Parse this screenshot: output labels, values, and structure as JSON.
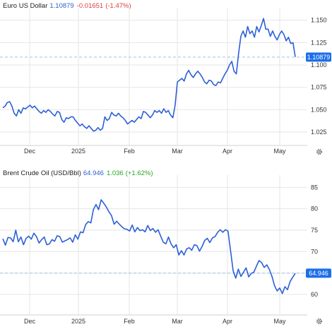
{
  "chart_data": [
    {
      "type": "line",
      "title": "Euro US Dollar",
      "last_value": "1.10879",
      "change": "-0.01651",
      "change_pct": "(-1.47%)",
      "price_tag": "1.10879",
      "x_ticks": [
        "Dec",
        "2025",
        "Feb",
        "Mar",
        "Apr",
        "May"
      ],
      "y_ticks": [
        "1.150",
        "1.125",
        "1.100",
        "1.075",
        "1.050",
        "1.025"
      ],
      "ylim": [
        1.01,
        1.16
      ],
      "series": [
        {
          "values": [
            1.052,
            1.054,
            1.058,
            1.059,
            1.054,
            1.046,
            1.043,
            1.05,
            1.046,
            1.052,
            1.051,
            1.053,
            1.055,
            1.052,
            1.054,
            1.051,
            1.048,
            1.046,
            1.049,
            1.047,
            1.05,
            1.048,
            1.045,
            1.043,
            1.048,
            1.047,
            1.039,
            1.036,
            1.041,
            1.04,
            1.042,
            1.042,
            1.038,
            1.035,
            1.032,
            1.034,
            1.031,
            1.029,
            1.032,
            1.029,
            1.026,
            1.027,
            1.03,
            1.027,
            1.029,
            1.042,
            1.038,
            1.04,
            1.047,
            1.044,
            1.043,
            1.046,
            1.043,
            1.041,
            1.038,
            1.034,
            1.036,
            1.038,
            1.036,
            1.039,
            1.042,
            1.04,
            1.048,
            1.047,
            1.044,
            1.041,
            1.044,
            1.049,
            1.047,
            1.049,
            1.046,
            1.051,
            1.047,
            1.049,
            1.044,
            1.041,
            1.055,
            1.081,
            1.083,
            1.085,
            1.082,
            1.09,
            1.094,
            1.089,
            1.086,
            1.09,
            1.093,
            1.09,
            1.086,
            1.081,
            1.079,
            1.083,
            1.082,
            1.078,
            1.077,
            1.081,
            1.08,
            1.085,
            1.09,
            1.094,
            1.1,
            1.104,
            1.093,
            1.09,
            1.113,
            1.132,
            1.138,
            1.131,
            1.143,
            1.135,
            1.138,
            1.131,
            1.143,
            1.137,
            1.144,
            1.152,
            1.14,
            1.14,
            1.132,
            1.138,
            1.132,
            1.128,
            1.134,
            1.138,
            1.134,
            1.127,
            1.131,
            1.124,
            1.125,
            1.109
          ]
        }
      ]
    },
    {
      "type": "line",
      "title": "Brent Crude Oil (USD/Bbl)",
      "last_value": "64.946",
      "change": "1.036",
      "change_pct": "(+1.62%)",
      "price_tag": "64.946",
      "x_ticks": [
        "Dec",
        "2025",
        "Feb",
        "Mar",
        "Apr",
        "May"
      ],
      "y_ticks": [
        "85",
        "80",
        "75",
        "70",
        "65",
        "60"
      ],
      "ylim": [
        55.2,
        87.2
      ],
      "series": [
        {
          "values": [
            73,
            71.5,
            73.3,
            73.2,
            72.3,
            75,
            72.3,
            73.4,
            71.6,
            73.1,
            73.6,
            72.9,
            74.3,
            73.5,
            72,
            72.8,
            73.4,
            71.6,
            71.8,
            72.8,
            72.4,
            73.7,
            73.5,
            72.2,
            72.5,
            72.8,
            73.2,
            72.2,
            73.9,
            72.9,
            74.6,
            74.4,
            76.3,
            77,
            76.7,
            79.8,
            81,
            79.8,
            82.1,
            81.3,
            80.4,
            79.3,
            78.4,
            76.4,
            77.1,
            76.4,
            75.8,
            75.3,
            75.2,
            74.8,
            76.2,
            74.6,
            75.6,
            74.9,
            75.1,
            74.6,
            76.1,
            74.9,
            75.4,
            74.5,
            75.1,
            73.6,
            72.2,
            71.8,
            73.4,
            71.8,
            70.9,
            71.6,
            69.2,
            70.2,
            69.2,
            70.6,
            70.9,
            70.3,
            71.6,
            71.4,
            70.1,
            71.2,
            72.6,
            73.1,
            72.1,
            73.2,
            73.5,
            74.5,
            75.1,
            74.5,
            75.1,
            74.8,
            70.2,
            65.5,
            63.8,
            65.9,
            64.2,
            65.2,
            66.2,
            64.1,
            64.9,
            65.2,
            66.6,
            67.9,
            67.4,
            66.3,
            66.9,
            65.8,
            64.2,
            62,
            60.8,
            61.5,
            60.2,
            61.8,
            61.1,
            63,
            64,
            64.9
          ]
        }
      ]
    }
  ],
  "colors": {
    "line": "#2c60d6",
    "last_value": "#2c60d6",
    "negative": "#e23b3b",
    "positive": "#29a529",
    "price_tag_bg": "#1d6ee8",
    "ref_line": "#9dc1ef",
    "grid": "#e6e6e6"
  },
  "icons": {
    "settings": "gear-icon"
  }
}
